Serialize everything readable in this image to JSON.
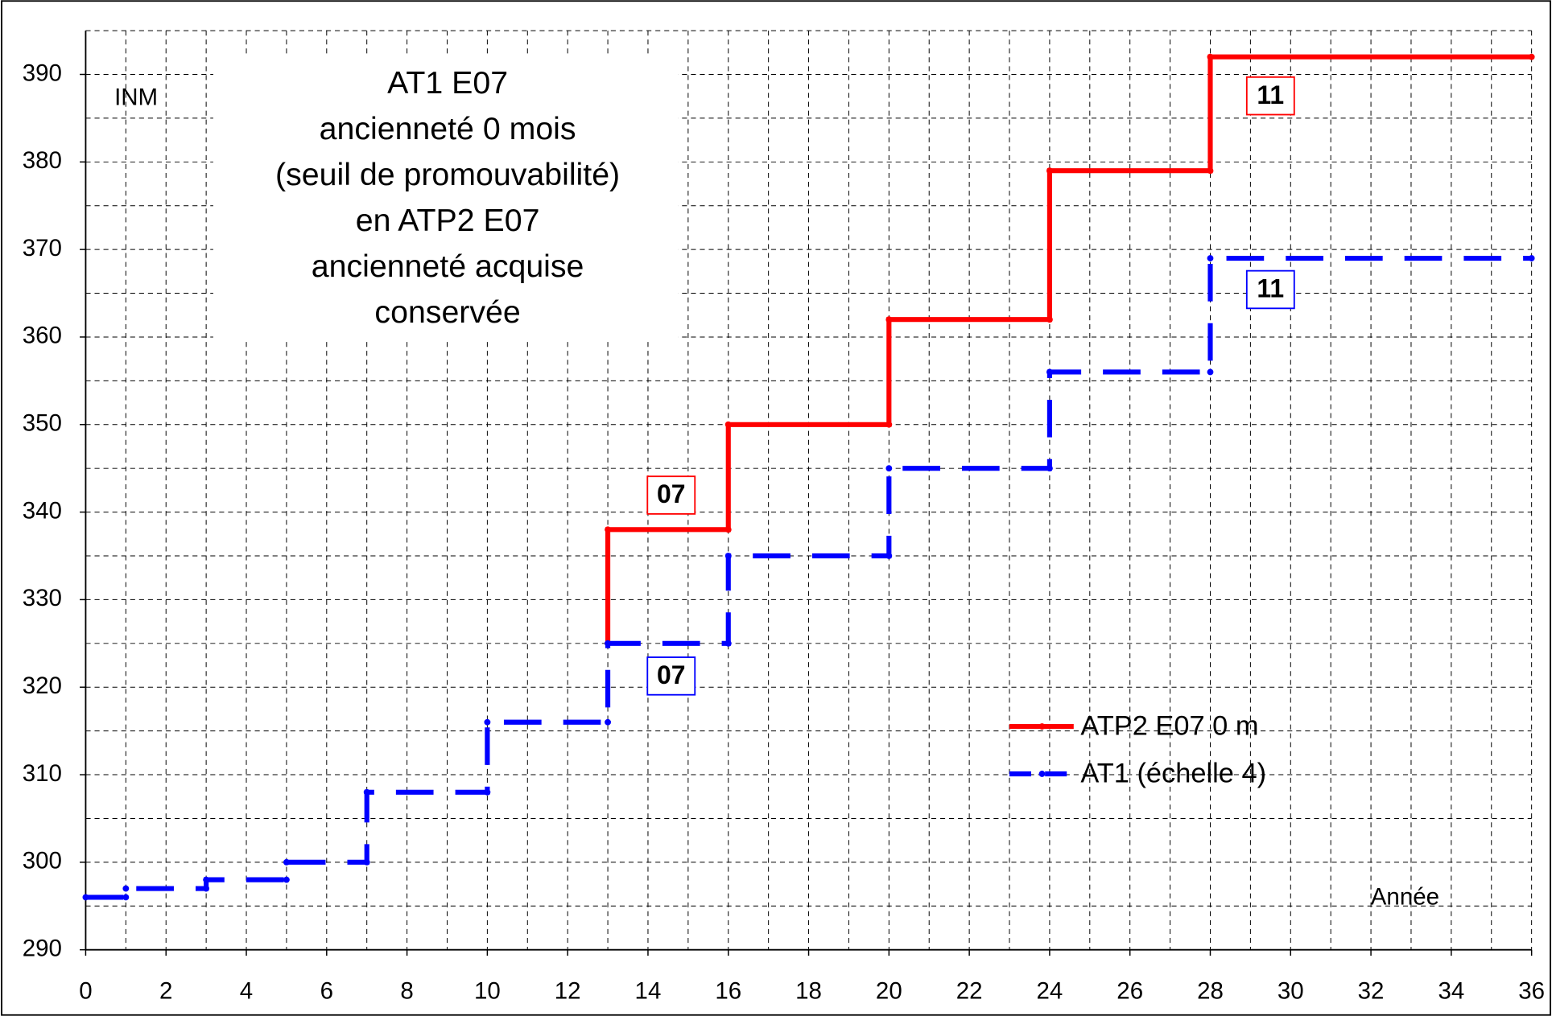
{
  "chart_data": {
    "type": "line",
    "x_label": "Année",
    "y_label": "INM",
    "annotation_lines": [
      "AT1 E07",
      "ancienneté 0 mois",
      "(seuil de promouvabilité)",
      "en ATP2 E07",
      "ancienneté acquise",
      "conservée"
    ],
    "boxes": [
      {
        "text": "07",
        "color": "#ff0000"
      },
      {
        "text": "11",
        "color": "#ff0000"
      },
      {
        "text": "07",
        "color": "#0000ff"
      },
      {
        "text": "11",
        "color": "#0000ff"
      }
    ],
    "xlim": [
      0,
      36
    ],
    "xticks": [
      0,
      2,
      4,
      6,
      8,
      10,
      12,
      14,
      16,
      18,
      20,
      22,
      24,
      26,
      28,
      30,
      32,
      34,
      36
    ],
    "ylim": [
      290,
      395
    ],
    "yticks": [
      290,
      300,
      310,
      320,
      330,
      340,
      350,
      360,
      370,
      380,
      390
    ],
    "grid": true,
    "legend": "lower right",
    "series": [
      {
        "name": "ATP2 E07 0 m",
        "color": "#ff0000",
        "dashed": false,
        "x": [
          13,
          13,
          16,
          16,
          20,
          20,
          24,
          24,
          28,
          28,
          36
        ],
        "values": [
          325,
          338,
          338,
          350,
          350,
          362,
          362,
          379,
          379,
          392,
          392
        ]
      },
      {
        "name": "AT1 (échelle 4)",
        "color": "#0000ff",
        "dashed": true,
        "x": [
          0,
          1,
          1,
          3,
          3,
          5,
          5,
          7,
          7,
          10,
          10,
          13,
          13,
          16,
          16,
          20,
          20,
          24,
          24,
          28,
          28,
          36
        ],
        "values": [
          296,
          296,
          297,
          297,
          298,
          298,
          300,
          300,
          308,
          308,
          316,
          316,
          325,
          325,
          335,
          335,
          345,
          345,
          356,
          356,
          369,
          369
        ]
      }
    ]
  }
}
